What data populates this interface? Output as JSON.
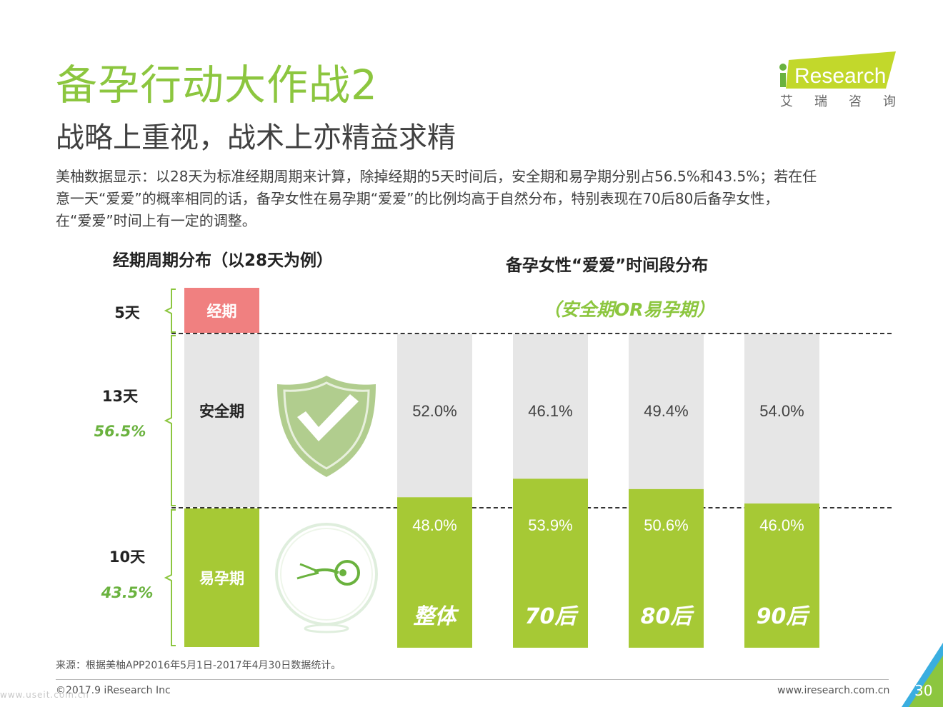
{
  "header": {
    "title": "备孕行动大作战2",
    "subtitle": "战略上重视，战术上亦精益求精",
    "description_lines": [
      "美柚数据显示：以28天为标准经期周期来计算，除掉经期的5天时间后，安全期和易孕期分别占56.5%和43.5%；若在任",
      "意一天“爱爱”的概率相同的话，备孕女性在易孕期“爱爱”的比例均高于自然分布，特别表现在70后80后备孕女性，",
      "在“爱爱”时间上有一定的调整。"
    ]
  },
  "logo": {
    "brand": "iResearch",
    "cn": "艾瑞咨询",
    "color": "#c2d82b"
  },
  "left_panel": {
    "heading": "经期周期分布（以28天为例）",
    "segments": [
      {
        "label": "经期",
        "days_label": "5天",
        "pct_label": "",
        "color": "#f08080"
      },
      {
        "label": "安全期",
        "days_label": "13天",
        "pct_label": "56.5%",
        "color": "#e6e6e6"
      },
      {
        "label": "易孕期",
        "days_label": "10天",
        "pct_label": "43.5%",
        "color": "#a6c935"
      }
    ],
    "icons": {
      "safe": "shield-check-icon",
      "fertile": "sperm-egg-icon"
    }
  },
  "chart_data": {
    "type": "bar",
    "stacked": true,
    "normalized": true,
    "title": "备孕女性“爱爱”时间段分布",
    "subtitle": "（安全期OR易孕期）",
    "categories": [
      "整体",
      "70后",
      "80后",
      "90后"
    ],
    "series": [
      {
        "name": "安全期",
        "values": [
          52.0,
          46.1,
          49.4,
          54.0
        ],
        "labels": [
          "52.0%",
          "46.1%",
          "49.4%",
          "54.0%"
        ],
        "color": "#e6e6e6"
      },
      {
        "name": "易孕期",
        "values": [
          48.0,
          53.9,
          50.6,
          46.0
        ],
        "labels": [
          "48.0%",
          "53.9%",
          "50.6%",
          "46.0%"
        ],
        "color": "#a6c935"
      }
    ],
    "ylim": [
      0,
      100
    ]
  },
  "footer": {
    "source": "来源：根据美柚APP2016年5月1日-2017年4月30日数据统计。",
    "copyright": "©2017.9 iResearch Inc",
    "url": "www.iresearch.com.cn",
    "page": "30",
    "watermark": "www.useit.com.cn"
  }
}
